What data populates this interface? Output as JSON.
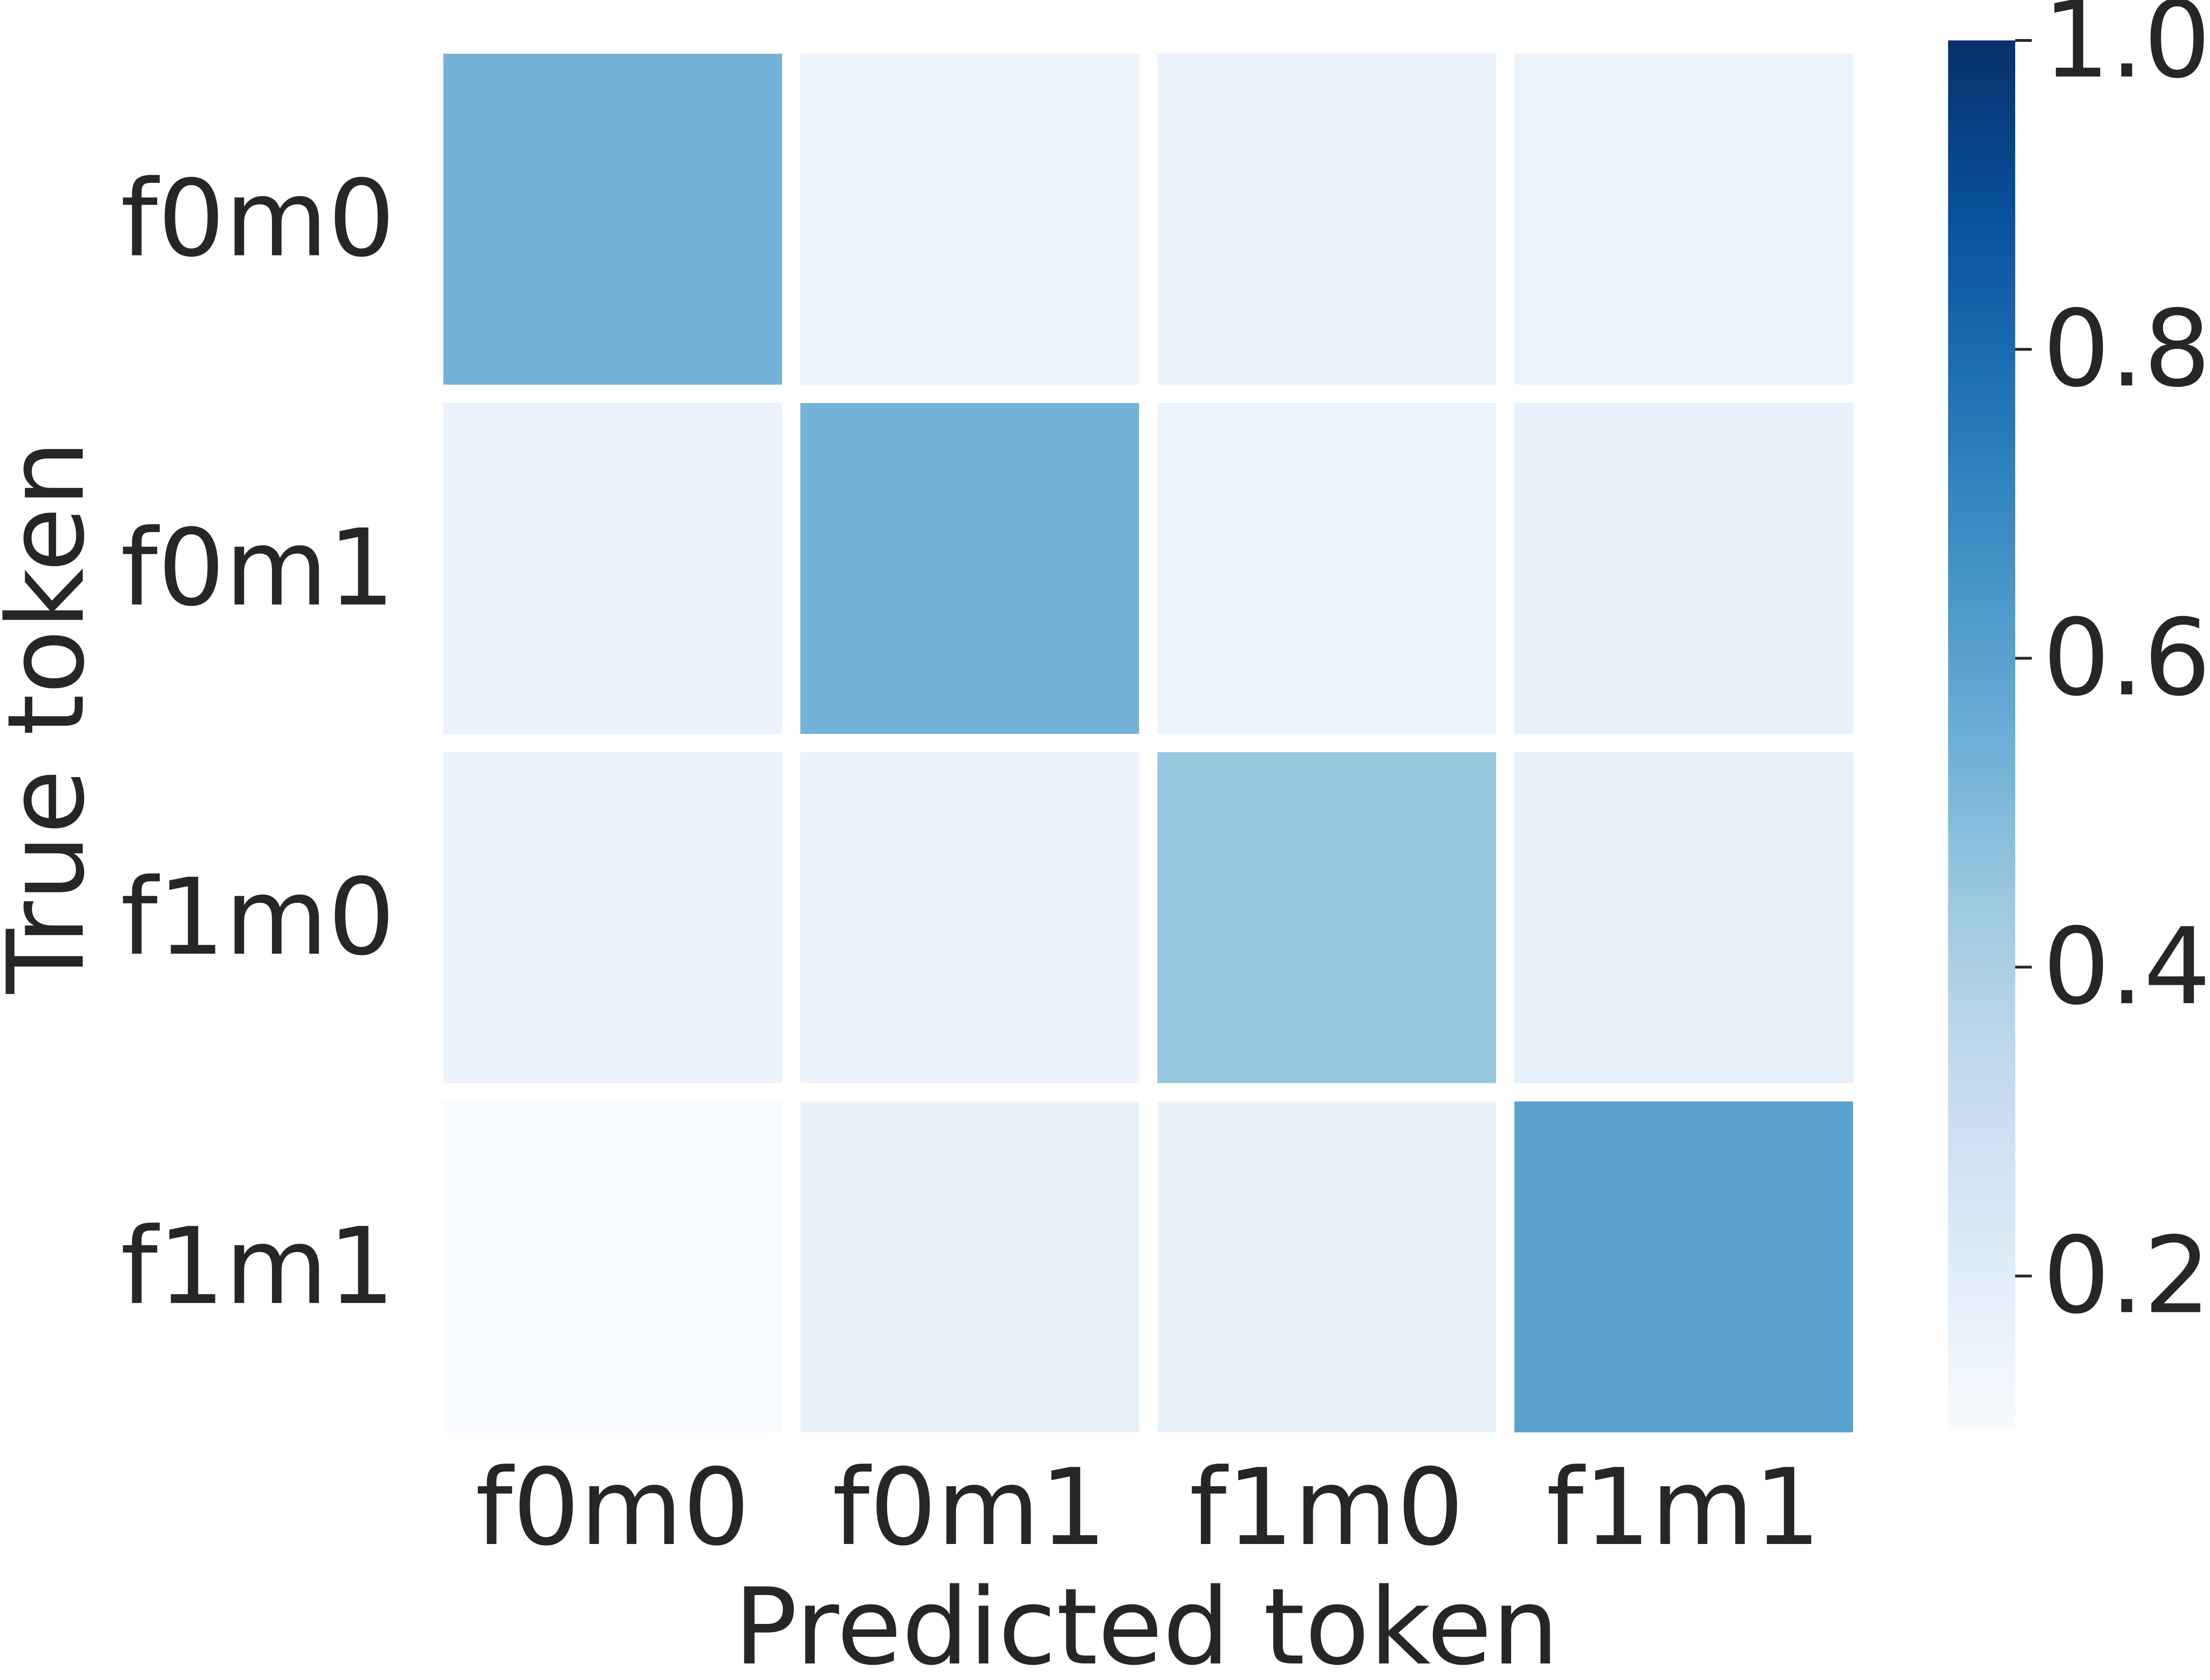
{
  "chart_data": {
    "type": "heatmap",
    "x_categories": [
      "f0m0",
      "f0m1",
      "f1m0",
      "f1m1"
    ],
    "y_categories": [
      "f0m0",
      "f0m1",
      "f1m0",
      "f1m1"
    ],
    "values": [
      [
        0.53,
        0.15,
        0.16,
        0.15
      ],
      [
        0.16,
        0.53,
        0.15,
        0.17
      ],
      [
        0.16,
        0.16,
        0.45,
        0.18
      ],
      [
        0.1,
        0.17,
        0.17,
        0.6
      ]
    ],
    "xlabel": "Predicted token",
    "ylabel": "True token",
    "colorbar": {
      "colormap": "Blues",
      "vmin": 0.1,
      "vmax": 1.0,
      "ticks": [
        0.2,
        0.4,
        0.6,
        0.8,
        1.0
      ],
      "tick_labels": [
        "0.2",
        "0.4",
        "0.6",
        "0.8",
        "1.0"
      ]
    }
  }
}
